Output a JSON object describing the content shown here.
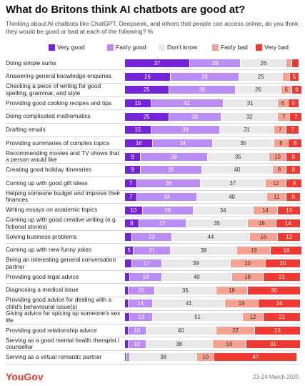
{
  "chart_data": {
    "type": "bar",
    "orientation": "horizontal",
    "stacked": true,
    "title": "What do Britons think AI chatbots are good at?",
    "subtitle": "Thinking about AI chatbots like ChatGPT, Deepseek, and others that people can access online, do you think they would be good or bad at each of the following? %",
    "categories": [
      "Doing simple sums",
      "Answering general knowledge enquiries",
      "Checking a piece of writing for good spelling, grammar, and style",
      "Providing good cooking recipes and tips",
      "Doing complicated mathematics",
      "Drafting emails",
      "Providing summaries of complex topics",
      "Recommending movies and TV shows that a person would like",
      "Creating good holiday itineraries",
      "Coming up with good gift ideas",
      "Helping someone budget and improve their finances",
      "Writing essays on academic topics",
      "Coming up with good creative writing (e.g. fictional stories)",
      "Solving business problems",
      "Coming up with new funny jokes",
      "Being an interesting general conversation partner",
      "Providing good legal advice",
      "Diagnosing a medical issue",
      "Providing good advice for dealing with a child's behavioural issue(s)",
      "Giving advice for spicing up someone's sex life",
      "Providing good relationship advice",
      "Serving as a good mental health therapist / counsellor",
      "Serving as a virtual romantic partner"
    ],
    "series": [
      {
        "name": "Very good",
        "color": "#7423d9",
        "text_color": "#ffffff",
        "values": [
          37,
          26,
          25,
          15,
          25,
          15,
          16,
          9,
          9,
          7,
          7,
          10,
          8,
          4,
          5,
          4,
          3,
          2,
          2,
          3,
          2,
          2,
          1
        ]
      },
      {
        "name": "Fairly good",
        "color": "#b98df3",
        "text_color": "#ffffff",
        "values": [
          29,
          39,
          38,
          41,
          30,
          39,
          34,
          38,
          35,
          36,
          34,
          29,
          27,
          23,
          21,
          17,
          18,
          15,
          14,
          13,
          10,
          10,
          2
        ]
      },
      {
        "name": "Don't know",
        "color": "#e9e9e9",
        "text_color": "#333333",
        "values": [
          26,
          25,
          26,
          31,
          32,
          31,
          35,
          35,
          40,
          37,
          40,
          34,
          35,
          44,
          38,
          39,
          40,
          35,
          41,
          51,
          40,
          38,
          38
        ]
      },
      {
        "name": "Fairly bad",
        "color": "#f6a293",
        "text_color": "#333333",
        "values": [
          3,
          4,
          6,
          6,
          7,
          7,
          8,
          10,
          8,
          12,
          11,
          14,
          16,
          16,
          19,
          20,
          18,
          18,
          19,
          12,
          22,
          19,
          10
        ]
      },
      {
        "name": "Very bad",
        "color": "#ee3a32",
        "text_color": "#ffffff",
        "values": [
          4,
          5,
          6,
          6,
          7,
          7,
          8,
          8,
          8,
          9,
          8,
          13,
          14,
          13,
          18,
          20,
          21,
          30,
          24,
          21,
          26,
          31,
          47
        ]
      }
    ],
    "source": "YouGov",
    "date": "23-24 March 2025"
  }
}
